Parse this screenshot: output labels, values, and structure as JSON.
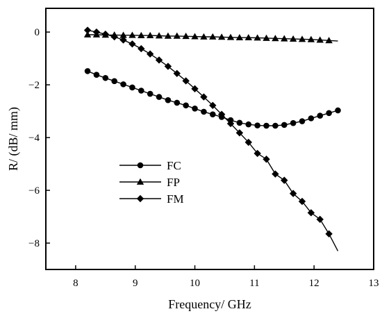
{
  "chart_data": {
    "type": "line",
    "xlabel": "Frequency/ GHz",
    "ylabel": "R/ (dB/ mm)",
    "xlim": [
      7.5,
      13
    ],
    "ylim": [
      -9,
      0.9
    ],
    "xticks": [
      8,
      9,
      10,
      11,
      12,
      13
    ],
    "yticks": [
      0,
      -2,
      -4,
      -6,
      -8
    ],
    "xtick_labels": [
      "8",
      "9",
      "10",
      "11",
      "12",
      "13"
    ],
    "ytick_labels": [
      "0",
      "−2",
      "−4",
      "−6",
      "−8"
    ],
    "grid": false,
    "legend_position": "center-left",
    "series": [
      {
        "name": "FC",
        "marker": "circle",
        "color": "#000000",
        "x": [
          8.2,
          8.35,
          8.5,
          8.65,
          8.8,
          8.95,
          9.1,
          9.25,
          9.4,
          9.55,
          9.7,
          9.85,
          10.0,
          10.15,
          10.3,
          10.45,
          10.6,
          10.75,
          10.9,
          11.05,
          11.2,
          11.35,
          11.5,
          11.65,
          11.8,
          11.95,
          12.1,
          12.25,
          12.4
        ],
        "y": [
          -1.48,
          -1.62,
          -1.74,
          -1.86,
          -1.98,
          -2.1,
          -2.22,
          -2.34,
          -2.46,
          -2.58,
          -2.68,
          -2.78,
          -2.9,
          -3.02,
          -3.12,
          -3.22,
          -3.34,
          -3.44,
          -3.5,
          -3.54,
          -3.55,
          -3.55,
          -3.52,
          -3.45,
          -3.38,
          -3.27,
          -3.17,
          -3.07,
          -2.97
        ]
      },
      {
        "name": "FP",
        "marker": "triangle",
        "color": "#000000",
        "x": [
          8.2,
          8.35,
          8.5,
          8.65,
          8.8,
          8.95,
          9.1,
          9.25,
          9.4,
          9.55,
          9.7,
          9.85,
          10.0,
          10.15,
          10.3,
          10.45,
          10.6,
          10.75,
          10.9,
          11.05,
          11.2,
          11.35,
          11.5,
          11.65,
          11.8,
          11.95,
          12.1,
          12.25,
          12.4
        ],
        "y": [
          -0.1,
          -0.1,
          -0.11,
          -0.11,
          -0.12,
          -0.12,
          -0.13,
          -0.13,
          -0.14,
          -0.15,
          -0.15,
          -0.16,
          -0.17,
          -0.18,
          -0.18,
          -0.19,
          -0.2,
          -0.21,
          -0.21,
          -0.22,
          -0.23,
          -0.24,
          -0.25,
          -0.26,
          -0.27,
          -0.28,
          -0.3,
          -0.32,
          -0.34
        ]
      },
      {
        "name": "FM",
        "marker": "diamond",
        "color": "#000000",
        "x": [
          8.2,
          8.35,
          8.5,
          8.65,
          8.8,
          8.95,
          9.1,
          9.25,
          9.4,
          9.55,
          9.7,
          9.85,
          10.0,
          10.15,
          10.3,
          10.45,
          10.6,
          10.75,
          10.9,
          11.05,
          11.2,
          11.35,
          11.5,
          11.65,
          11.8,
          11.95,
          12.1,
          12.25,
          12.4
        ],
        "y": [
          0.07,
          0.0,
          -0.08,
          -0.18,
          -0.3,
          -0.45,
          -0.63,
          -0.83,
          -1.06,
          -1.3,
          -1.57,
          -1.85,
          -2.15,
          -2.46,
          -2.78,
          -3.12,
          -3.47,
          -3.82,
          -4.18,
          -4.6,
          -4.82,
          -5.38,
          -5.62,
          -6.12,
          -6.42,
          -6.85,
          -7.1,
          -7.65,
          -8.3
        ]
      }
    ]
  }
}
